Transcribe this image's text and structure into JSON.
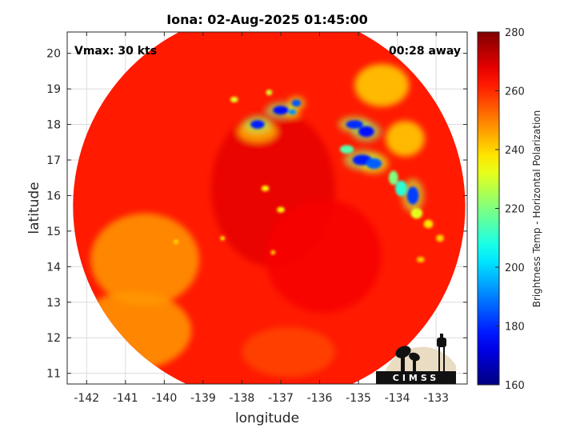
{
  "chart_data": {
    "type": "heatmap",
    "title": "Iona: 02-Aug-2025 01:45:00",
    "xlabel": "longitude",
    "ylabel": "latitude",
    "xlim": [
      -142.5,
      -132.2
    ],
    "ylim": [
      10.7,
      20.6
    ],
    "x_ticks": [
      -142,
      -141,
      -140,
      -139,
      -138,
      -137,
      -136,
      -135,
      -134,
      -133
    ],
    "y_ticks": [
      11,
      12,
      13,
      14,
      15,
      16,
      17,
      18,
      19,
      20
    ],
    "grid": true,
    "annotations": {
      "vmax": "Vmax: 30 kts",
      "away": "00:28 away"
    },
    "colorbar": {
      "label": "Brightness Temp - Horizontal Polarization",
      "ticks": [
        160,
        180,
        200,
        220,
        240,
        260,
        280
      ],
      "range": [
        160,
        280
      ],
      "colormap": "jet"
    },
    "swath": {
      "center_lon": -137.3,
      "center_lat": 15.7,
      "radius_deg": 5.05,
      "background_temp": 262
    },
    "features": [
      {
        "lon": -137.2,
        "lat": 16.2,
        "temp": 268,
        "sx": 1.6,
        "sy": 2.2
      },
      {
        "lon": -135.9,
        "lat": 14.3,
        "temp": 266,
        "sx": 1.5,
        "sy": 1.6
      },
      {
        "lon": -140.5,
        "lat": 14.2,
        "temp": 247,
        "sx": 1.4,
        "sy": 1.3
      },
      {
        "lon": -140.8,
        "lat": 12.2,
        "temp": 247,
        "sx": 1.5,
        "sy": 1.1
      },
      {
        "lon": -136.8,
        "lat": 11.6,
        "temp": 257,
        "sx": 1.2,
        "sy": 0.7
      },
      {
        "lon": -134.4,
        "lat": 19.1,
        "temp": 240,
        "sx": 0.7,
        "sy": 0.6
      },
      {
        "lon": -137.6,
        "lat": 17.8,
        "temp": 244,
        "sx": 0.5,
        "sy": 0.3
      },
      {
        "lon": -133.8,
        "lat": 17.6,
        "temp": 240,
        "sx": 0.5,
        "sy": 0.5
      },
      {
        "lon": -137.6,
        "lat": 18.0,
        "temp": 178,
        "sx": 0.18,
        "sy": 0.12
      },
      {
        "lon": -137.0,
        "lat": 18.4,
        "temp": 176,
        "sx": 0.2,
        "sy": 0.12
      },
      {
        "lon": -136.6,
        "lat": 18.6,
        "temp": 185,
        "sx": 0.12,
        "sy": 0.1
      },
      {
        "lon": -136.7,
        "lat": 18.35,
        "temp": 192,
        "sx": 0.1,
        "sy": 0.08
      },
      {
        "lon": -137.3,
        "lat": 18.9,
        "temp": 230,
        "sx": 0.08,
        "sy": 0.08
      },
      {
        "lon": -138.2,
        "lat": 18.7,
        "temp": 232,
        "sx": 0.1,
        "sy": 0.08
      },
      {
        "lon": -135.1,
        "lat": 18.0,
        "temp": 180,
        "sx": 0.22,
        "sy": 0.12
      },
      {
        "lon": -134.8,
        "lat": 17.8,
        "temp": 176,
        "sx": 0.2,
        "sy": 0.15
      },
      {
        "lon": -134.9,
        "lat": 17.0,
        "temp": 178,
        "sx": 0.25,
        "sy": 0.15
      },
      {
        "lon": -134.6,
        "lat": 16.9,
        "temp": 186,
        "sx": 0.2,
        "sy": 0.15
      },
      {
        "lon": -133.6,
        "lat": 16.0,
        "temp": 182,
        "sx": 0.15,
        "sy": 0.25
      },
      {
        "lon": -135.3,
        "lat": 17.3,
        "temp": 215,
        "sx": 0.18,
        "sy": 0.12
      },
      {
        "lon": -134.1,
        "lat": 16.5,
        "temp": 220,
        "sx": 0.12,
        "sy": 0.2
      },
      {
        "lon": -133.9,
        "lat": 16.2,
        "temp": 210,
        "sx": 0.15,
        "sy": 0.22
      },
      {
        "lon": -133.5,
        "lat": 15.5,
        "temp": 232,
        "sx": 0.15,
        "sy": 0.15
      },
      {
        "lon": -133.2,
        "lat": 15.2,
        "temp": 238,
        "sx": 0.12,
        "sy": 0.12
      },
      {
        "lon": -137.0,
        "lat": 15.6,
        "temp": 236,
        "sx": 0.1,
        "sy": 0.08
      },
      {
        "lon": -137.4,
        "lat": 16.2,
        "temp": 236,
        "sx": 0.1,
        "sy": 0.08
      },
      {
        "lon": -138.5,
        "lat": 14.8,
        "temp": 235,
        "sx": 0.06,
        "sy": 0.06
      },
      {
        "lon": -139.7,
        "lat": 14.7,
        "temp": 238,
        "sx": 0.06,
        "sy": 0.06
      },
      {
        "lon": -137.2,
        "lat": 14.4,
        "temp": 238,
        "sx": 0.06,
        "sy": 0.06
      },
      {
        "lon": -132.9,
        "lat": 14.8,
        "temp": 240,
        "sx": 0.1,
        "sy": 0.1
      },
      {
        "lon": -133.4,
        "lat": 14.2,
        "temp": 241,
        "sx": 0.1,
        "sy": 0.08
      }
    ]
  }
}
